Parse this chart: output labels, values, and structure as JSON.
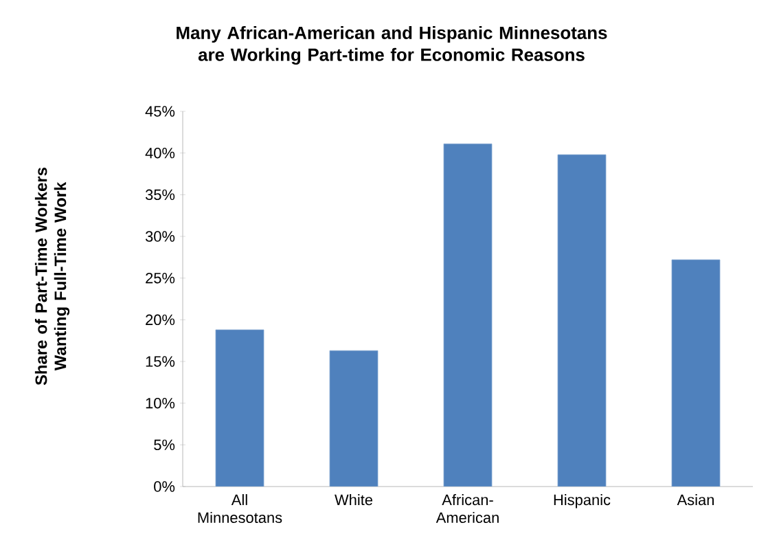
{
  "chart_data": {
    "type": "bar",
    "title": "Many African-American and Hispanic Minnesotans are Working Part-time for Economic Reasons",
    "ylabel": "Share of Part-Time Workers Wanting Full-Time Work",
    "categories": [
      "All Minnesotans",
      "White",
      "African-American",
      "Hispanic",
      "Asian"
    ],
    "values": [
      18.8,
      16.3,
      41.1,
      39.8,
      27.2
    ],
    "color": "#4f81bd",
    "ylim": [
      0,
      45
    ],
    "yticks": [
      {
        "value": 0,
        "label": "0%"
      },
      {
        "value": 5,
        "label": "5%"
      },
      {
        "value": 10,
        "label": "10%"
      },
      {
        "value": 15,
        "label": "15%"
      },
      {
        "value": 20,
        "label": "20%"
      },
      {
        "value": 25,
        "label": "25%"
      },
      {
        "value": 30,
        "label": "30%"
      },
      {
        "value": 35,
        "label": "35%"
      },
      {
        "value": 40,
        "label": "40%"
      },
      {
        "value": 45,
        "label": "45%"
      }
    ],
    "grid": false
  }
}
